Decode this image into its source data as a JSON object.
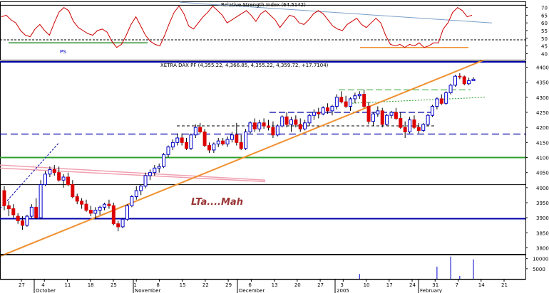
{
  "chart_data": [
    {
      "panel": "rsi",
      "type": "line",
      "title": "Relative Strength Index (64.5142)",
      "y_ticks": [
        40,
        45,
        50,
        55,
        60,
        65,
        70
      ],
      "ylim": [
        36,
        74
      ],
      "series": [
        {
          "values": [
            64,
            65,
            62,
            60,
            55,
            52,
            51,
            56,
            59,
            55,
            52,
            60,
            67,
            70,
            68,
            61,
            57,
            55,
            53,
            52,
            55,
            56,
            54,
            48,
            44,
            46,
            52,
            59,
            64,
            58,
            52,
            48,
            46,
            45,
            52,
            60,
            67,
            71,
            66,
            58,
            56,
            60,
            64,
            67,
            71,
            68,
            65,
            60,
            62,
            64,
            66,
            68,
            65,
            61,
            66,
            68,
            65,
            62,
            57,
            61,
            65,
            64,
            60,
            59,
            62,
            66,
            68,
            66,
            62,
            58,
            56,
            55,
            59,
            61,
            63,
            59,
            57,
            60,
            63,
            60,
            52,
            46,
            45,
            46,
            44,
            46,
            45,
            47,
            44,
            45,
            47,
            47,
            56,
            60,
            67,
            70,
            68,
            64,
            65
          ],
          "color": "#cc0000"
        }
      ],
      "reference_lines": [
        {
          "y": 71.5,
          "color": "#000000",
          "style": "solid"
        },
        {
          "y": 49,
          "color": "#000000",
          "style": "dashed"
        }
      ],
      "annotations": [
        {
          "text": "PS",
          "color": "#0000cc"
        },
        {
          "kind": "support-line",
          "color": "#2e8b2e"
        },
        {
          "kind": "support-line",
          "color": "#f09030"
        },
        {
          "kind": "trend-line",
          "color": "#7aa0c8"
        }
      ]
    },
    {
      "panel": "price",
      "type": "candlestick",
      "title": "XETRA DAX PF (4,355.22, 4,366.85, 4,355.22, 4,359.72, +17.7104)",
      "y_ticks": [
        3800,
        3850,
        3900,
        3950,
        4000,
        4050,
        4100,
        4150,
        4200,
        4250,
        4300,
        4350,
        4400
      ],
      "ylim": [
        3780,
        4420
      ],
      "bull_color": "#0000cc",
      "bear_color": "#dd0000",
      "candles": [
        [
          3990,
          4005,
          3925,
          3940
        ],
        [
          3940,
          3955,
          3905,
          3930
        ],
        [
          3930,
          3945,
          3900,
          3910
        ],
        [
          3905,
          3915,
          3880,
          3890
        ],
        [
          3890,
          3905,
          3860,
          3875
        ],
        [
          3875,
          3910,
          3870,
          3905
        ],
        [
          3905,
          3945,
          3900,
          3935
        ],
        [
          3935,
          3965,
          3895,
          3900
        ],
        [
          3900,
          4025,
          3895,
          4010
        ],
        [
          4010,
          4055,
          4005,
          4045
        ],
        [
          4045,
          4070,
          4035,
          4060
        ],
        [
          4060,
          4075,
          4040,
          4050
        ],
        [
          4050,
          4070,
          4020,
          4025
        ],
        [
          4025,
          4045,
          4000,
          4035
        ],
        [
          4035,
          4050,
          4005,
          4010
        ],
        [
          4010,
          4025,
          3965,
          3970
        ],
        [
          3970,
          3980,
          3945,
          3955
        ],
        [
          3955,
          3965,
          3930,
          3945
        ],
        [
          3945,
          3960,
          3920,
          3925
        ],
        [
          3925,
          3940,
          3905,
          3915
        ],
        [
          3915,
          3935,
          3895,
          3925
        ],
        [
          3925,
          3940,
          3910,
          3935
        ],
        [
          3935,
          3950,
          3925,
          3945
        ],
        [
          3945,
          3960,
          3930,
          3940
        ],
        [
          3940,
          3950,
          3875,
          3880
        ],
        [
          3880,
          3890,
          3855,
          3870
        ],
        [
          3870,
          3900,
          3865,
          3895
        ],
        [
          3895,
          3945,
          3890,
          3940
        ],
        [
          3940,
          3975,
          3935,
          3970
        ],
        [
          3970,
          4005,
          3960,
          3990
        ],
        [
          3990,
          4010,
          3975,
          4005
        ],
        [
          4005,
          4050,
          3998,
          4040
        ],
        [
          4040,
          4060,
          4025,
          4050
        ],
        [
          4050,
          4075,
          4040,
          4065
        ],
        [
          4065,
          4080,
          4050,
          4070
        ],
        [
          4070,
          4115,
          4065,
          4110
        ],
        [
          4110,
          4140,
          4100,
          4135
        ],
        [
          4135,
          4160,
          4125,
          4150
        ],
        [
          4150,
          4180,
          4140,
          4165
        ],
        [
          4165,
          4180,
          4140,
          4150
        ],
        [
          4150,
          4165,
          4125,
          4130
        ],
        [
          4130,
          4180,
          4125,
          4175
        ],
        [
          4175,
          4210,
          4165,
          4200
        ],
        [
          4200,
          4215,
          4180,
          4185
        ],
        [
          4185,
          4195,
          4135,
          4140
        ],
        [
          4140,
          4150,
          4115,
          4125
        ],
        [
          4125,
          4150,
          4115,
          4145
        ],
        [
          4145,
          4165,
          4135,
          4155
        ],
        [
          4155,
          4165,
          4140,
          4145
        ],
        [
          4145,
          4170,
          4135,
          4160
        ],
        [
          4160,
          4185,
          4150,
          4175
        ],
        [
          4175,
          4215,
          4140,
          4150
        ],
        [
          4150,
          4175,
          4125,
          4130
        ],
        [
          4130,
          4195,
          4125,
          4185
        ],
        [
          4185,
          4220,
          4180,
          4215
        ],
        [
          4215,
          4230,
          4185,
          4195
        ],
        [
          4195,
          4225,
          4185,
          4215
        ],
        [
          4215,
          4230,
          4195,
          4205
        ],
        [
          4205,
          4225,
          4190,
          4200
        ],
        [
          4200,
          4220,
          4165,
          4175
        ],
        [
          4175,
          4210,
          4170,
          4205
        ],
        [
          4205,
          4240,
          4200,
          4235
        ],
        [
          4235,
          4250,
          4200,
          4210
        ],
        [
          4210,
          4235,
          4185,
          4225
        ],
        [
          4225,
          4240,
          4200,
          4210
        ],
        [
          4210,
          4230,
          4185,
          4195
        ],
        [
          4195,
          4225,
          4190,
          4215
        ],
        [
          4215,
          4245,
          4205,
          4240
        ],
        [
          4240,
          4260,
          4225,
          4250
        ],
        [
          4250,
          4265,
          4230,
          4245
        ],
        [
          4245,
          4270,
          4240,
          4265
        ],
        [
          4265,
          4280,
          4245,
          4255
        ],
        [
          4255,
          4275,
          4240,
          4270
        ],
        [
          4270,
          4310,
          4260,
          4300
        ],
        [
          4300,
          4320,
          4280,
          4285
        ],
        [
          4285,
          4305,
          4265,
          4270
        ],
        [
          4270,
          4300,
          4255,
          4295
        ],
        [
          4295,
          4315,
          4280,
          4305
        ],
        [
          4305,
          4320,
          4295,
          4310
        ],
        [
          4310,
          4325,
          4265,
          4270
        ],
        [
          4270,
          4285,
          4210,
          4220
        ],
        [
          4220,
          4250,
          4205,
          4245
        ],
        [
          4245,
          4270,
          4235,
          4255
        ],
        [
          4255,
          4265,
          4200,
          4210
        ],
        [
          4210,
          4245,
          4205,
          4240
        ],
        [
          4240,
          4255,
          4230,
          4250
        ],
        [
          4250,
          4265,
          4225,
          4230
        ],
        [
          4230,
          4250,
          4195,
          4200
        ],
        [
          4200,
          4220,
          4165,
          4185
        ],
        [
          4185,
          4235,
          4180,
          4225
        ],
        [
          4225,
          4240,
          4195,
          4200
        ],
        [
          4200,
          4215,
          4180,
          4190
        ],
        [
          4190,
          4215,
          4185,
          4210
        ],
        [
          4210,
          4245,
          4205,
          4240
        ],
        [
          4240,
          4275,
          4235,
          4270
        ],
        [
          4270,
          4300,
          4260,
          4295
        ],
        [
          4295,
          4310,
          4275,
          4280
        ],
        [
          4280,
          4320,
          4275,
          4315
        ],
        [
          4315,
          4345,
          4310,
          4340
        ],
        [
          4340,
          4375,
          4335,
          4370
        ],
        [
          4370,
          4380,
          4360,
          4368
        ],
        [
          4368,
          4372,
          4340,
          4345
        ],
        [
          4345,
          4365,
          4340,
          4355
        ],
        [
          4355,
          4367,
          4355,
          4360
        ]
      ],
      "reference_lines": [
        {
          "y": 4424,
          "color": "#0000aa",
          "style": "solid"
        },
        {
          "y": 4100,
          "color": "#2ea02e",
          "style": "solid"
        },
        {
          "y": 4010,
          "color": "#000000",
          "style": "solid"
        },
        {
          "y": 3897,
          "color": "#0000aa",
          "style": "solid"
        },
        {
          "y": 4178,
          "color": "#0000aa",
          "style": "dashed"
        }
      ],
      "annotations": [
        {
          "text": "LTa....Mah",
          "color": "#993333"
        },
        {
          "kind": "trend-line",
          "color": "#f09030"
        },
        {
          "kind": "channel-line",
          "color": "#f0a0b0"
        },
        {
          "kind": "dashed-trend",
          "color": "#0000aa"
        }
      ]
    },
    {
      "panel": "volume",
      "type": "bar",
      "y_ticks": [
        5000,
        10000
      ],
      "ylim": [
        0,
        12000
      ],
      "values": [
        0,
        0,
        0,
        0,
        0,
        0,
        0,
        0,
        0,
        0,
        0,
        0,
        0,
        0,
        0,
        0,
        0,
        0,
        0,
        0,
        0,
        0,
        0,
        0,
        0,
        0,
        0,
        0,
        0,
        0,
        0,
        0,
        0,
        0,
        0,
        0,
        0,
        0,
        0,
        0,
        0,
        0,
        0,
        0,
        0,
        0,
        0,
        0,
        0,
        0,
        0,
        0,
        0,
        0,
        0,
        0,
        0,
        0,
        0,
        0,
        0,
        0,
        0,
        0,
        0,
        0,
        0,
        0,
        0,
        0,
        0,
        0,
        0,
        0,
        0,
        0,
        0,
        0,
        2400,
        0,
        0,
        0,
        0,
        0,
        0,
        0,
        0,
        0,
        0,
        0,
        0,
        0,
        0,
        0,
        0,
        6000,
        0,
        0,
        11000,
        0,
        1400,
        0,
        0,
        9600,
        0,
        0
      ],
      "color": "#0000cc"
    },
    {
      "panel": "x-axis",
      "type": "axis",
      "tick_labels": [
        "27",
        "4",
        "11",
        "18",
        "25",
        "1",
        "8",
        "15",
        "22",
        "29",
        "6",
        "13",
        "20",
        "27",
        "3",
        "10",
        "17",
        "24",
        "31",
        "7",
        "14",
        "21"
      ],
      "month_labels": [
        "October",
        "November",
        "December",
        "2005",
        "February"
      ]
    }
  ]
}
